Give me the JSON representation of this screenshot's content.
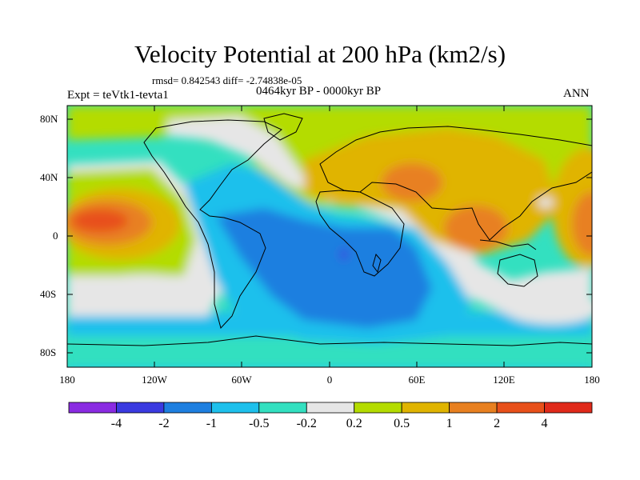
{
  "title": "Velocity Potential at 200 hPa (km2/s)",
  "stats": "rmsd= 0.842543  diff= -2.74838e-05",
  "experiment": "Expt = teVtk1-tevta1",
  "period": "0464kyr BP - 0000kyr BP",
  "season": "ANN",
  "y_axis": {
    "labels": [
      "80N",
      "40N",
      "0",
      "40S",
      "80S"
    ]
  },
  "x_axis": {
    "labels": [
      "180",
      "120W",
      "60W",
      "0",
      "60E",
      "120E",
      "180"
    ]
  },
  "colorbar": {
    "colors": [
      "#8a2be2",
      "#3a3ae0",
      "#1e7fe0",
      "#1ec0ec",
      "#33e0c0",
      "#e6e6e6",
      "#b4dc00",
      "#e0b400",
      "#e88020",
      "#e8501a",
      "#e02a1a"
    ],
    "labels": [
      "-4",
      "-2",
      "-1",
      "-0.5",
      "-0.2",
      "0.2",
      "0.5",
      "1",
      "2",
      "4"
    ]
  }
}
